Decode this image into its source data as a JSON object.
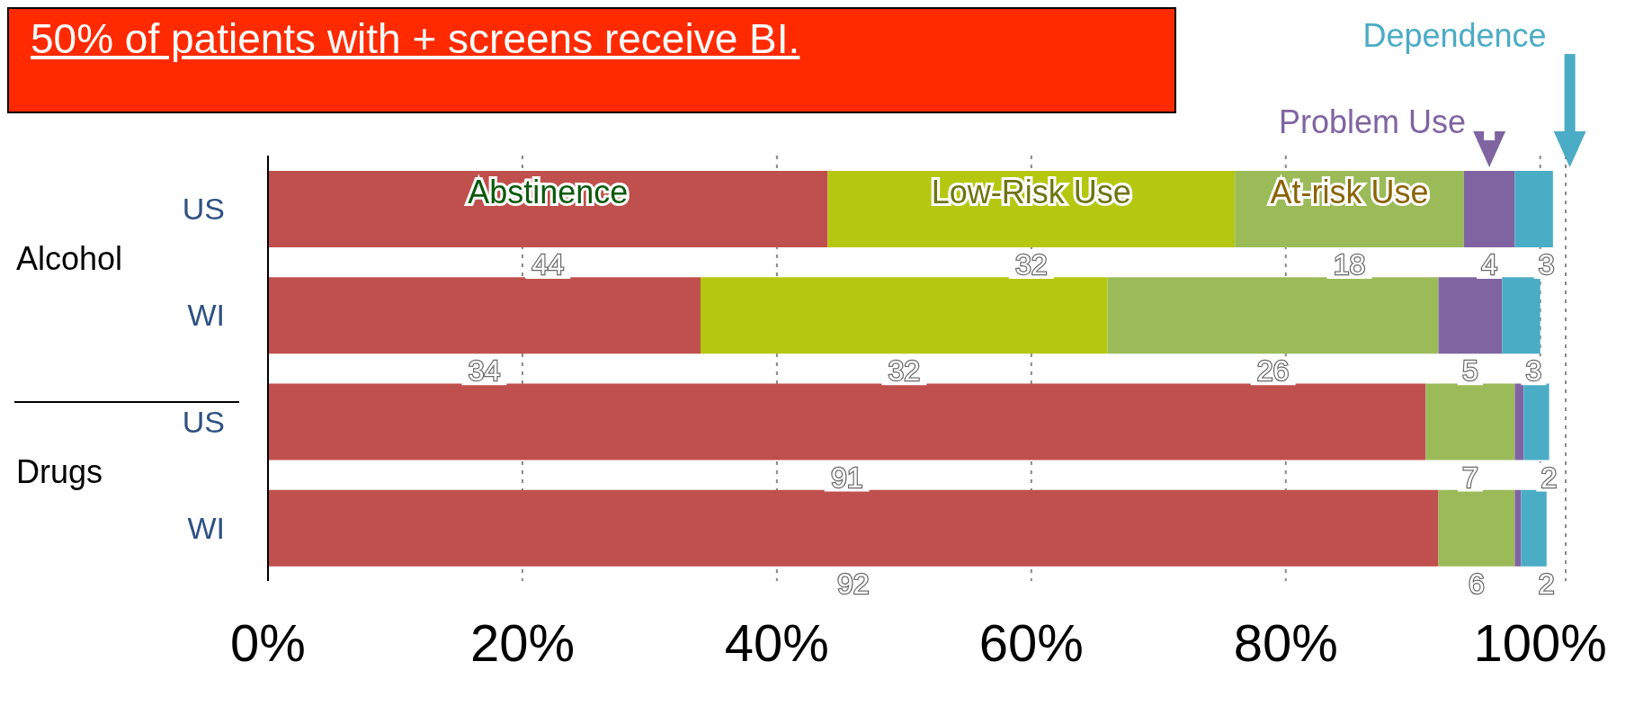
{
  "chart_data": {
    "type": "bar",
    "orientation": "horizontal",
    "stacked": true,
    "title": "50% of patients with + screens receive BI.",
    "categories": [
      "US",
      "WI",
      "US",
      "WI"
    ],
    "series": [
      {
        "name": "Abstinence",
        "color": "#c0504d",
        "values": [
          44,
          34,
          91,
          92
        ],
        "value_labels": [
          "44",
          "34",
          "91",
          "92"
        ]
      },
      {
        "name": "Low-Risk Use",
        "color": "#b5c80f",
        "values": [
          32,
          32,
          null,
          null
        ],
        "value_labels": [
          "32",
          "32",
          null,
          null
        ]
      },
      {
        "name": "At-risk Use",
        "color": "#9bbb59",
        "values": [
          18,
          26,
          7,
          6
        ],
        "value_labels": [
          "18",
          "26",
          "7",
          "6"
        ]
      },
      {
        "name": "Problem Use",
        "color": "#8064a2",
        "values": [
          4,
          5,
          0.7,
          0.5
        ],
        "value_labels": [
          "4",
          "5",
          null,
          null
        ]
      },
      {
        "name": "Dependence",
        "color": "#4bacc6",
        "values": [
          3,
          3,
          2,
          2
        ],
        "value_labels": [
          "3",
          "3",
          "2",
          "2"
        ]
      }
    ],
    "annotations": [
      "Alcohol",
      "Drugs"
    ],
    "xlim": [
      0,
      102
    ],
    "xticks": [
      {
        "value": 0,
        "label": "0%"
      },
      {
        "value": 20,
        "label": "20%"
      },
      {
        "value": 40,
        "label": "40%"
      },
      {
        "value": 60,
        "label": "60%"
      },
      {
        "value": 80,
        "label": "80%"
      },
      {
        "value": 100,
        "label": "100%"
      }
    ],
    "grid": "x",
    "legend": false
  }
}
